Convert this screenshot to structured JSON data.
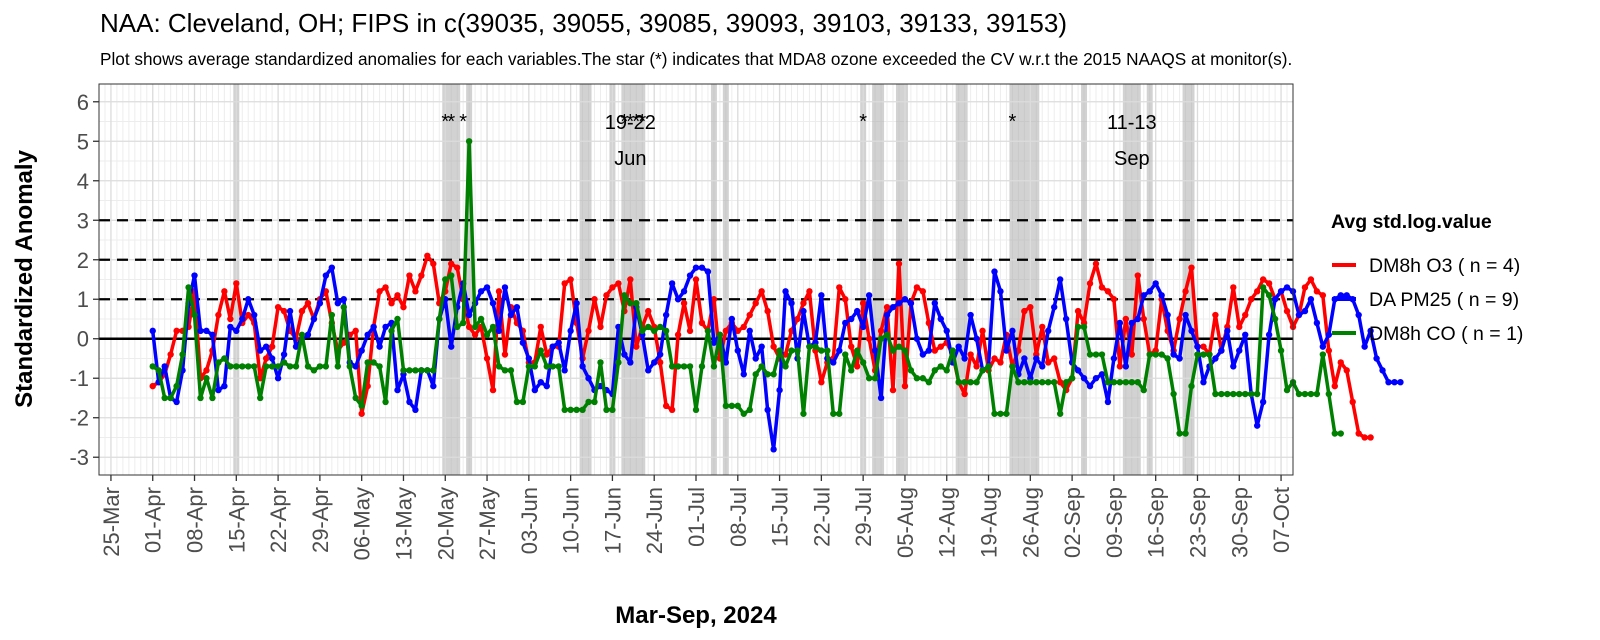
{
  "title": "NAA: Cleveland, OH; FIPS in c(39035, 39055, 39085, 39093, 39103, 39133, 39153)",
  "subtitle": "Plot shows average standardized anomalies for each variables.The star (*) indicates that MDA8 ozone exceeded the CV w.r.t the 2015 NAAQS at monitor(s).",
  "chart_data": {
    "type": "line",
    "title": "NAA: Cleveland, OH; FIPS in c(39035, 39055, 39085, 39093, 39103, 39133, 39153)",
    "xlabel": "Mar-Sep, 2024",
    "ylabel": "Standardized Anomaly",
    "xlim": [
      "2024-03-23",
      "2024-10-09"
    ],
    "ylim": [
      -3.45,
      6.45
    ],
    "y_ticks": [
      -3,
      -2,
      -1,
      0,
      1,
      2,
      3,
      4,
      5,
      6
    ],
    "x_ticks": [
      "25-Mar",
      "01-Apr",
      "08-Apr",
      "15-Apr",
      "22-Apr",
      "29-Apr",
      "06-May",
      "13-May",
      "20-May",
      "27-May",
      "03-Jun",
      "10-Jun",
      "17-Jun",
      "24-Jun",
      "01-Jul",
      "08-Jul",
      "15-Jul",
      "22-Jul",
      "29-Jul",
      "05-Aug",
      "12-Aug",
      "19-Aug",
      "26-Aug",
      "02-Sep",
      "09-Sep",
      "16-Sep",
      "23-Sep",
      "30-Sep",
      "07-Oct"
    ],
    "grid": true,
    "reference_lines": [
      {
        "y": 0,
        "style": "solid"
      },
      {
        "y": 1,
        "style": "dashed"
      },
      {
        "y": 2,
        "style": "dashed"
      },
      {
        "y": 3,
        "style": "dashed"
      }
    ],
    "legend": {
      "title": "Avg std.log.value",
      "position": "right"
    },
    "exceedance_star_dates": [
      "2024-05-20",
      "2024-05-21",
      "2024-05-23",
      "2024-06-19",
      "2024-06-20",
      "2024-06-21",
      "2024-06-22",
      "2024-07-29",
      "2024-08-23"
    ],
    "highlight_periods": [
      [
        "2024-04-15",
        "2024-04-15"
      ],
      [
        "2024-05-20",
        "2024-05-22"
      ],
      [
        "2024-05-24",
        "2024-05-24"
      ],
      [
        "2024-06-12",
        "2024-06-13"
      ],
      [
        "2024-06-17",
        "2024-06-17"
      ],
      [
        "2024-06-19",
        "2024-06-22"
      ],
      [
        "2024-07-04",
        "2024-07-04"
      ],
      [
        "2024-07-06",
        "2024-07-06"
      ],
      [
        "2024-07-29",
        "2024-07-29"
      ],
      [
        "2024-07-31",
        "2024-08-01"
      ],
      [
        "2024-08-04",
        "2024-08-05"
      ],
      [
        "2024-08-14",
        "2024-08-15"
      ],
      [
        "2024-08-23",
        "2024-08-27"
      ],
      [
        "2024-09-04",
        "2024-09-04"
      ],
      [
        "2024-09-11",
        "2024-09-13"
      ],
      [
        "2024-09-15",
        "2024-09-15"
      ],
      [
        "2024-09-21",
        "2024-09-22"
      ]
    ],
    "period_labels": [
      {
        "date": "2024-06-20",
        "lines": [
          "19-22",
          "Jun"
        ]
      },
      {
        "date": "2024-09-12",
        "lines": [
          "11-13",
          "Sep"
        ]
      }
    ],
    "series_start": "2024-04-01",
    "series": [
      {
        "name": "DM8h O3 ( n = 4)",
        "color": "#ff0000",
        "values": [
          -1.2,
          -1.1,
          -0.9,
          -0.4,
          0.2,
          0.2,
          0.3,
          1.2,
          -1.0,
          -0.8,
          -0.3,
          0.6,
          1.2,
          0.5,
          1.4,
          0.4,
          0.6,
          0.4,
          -1.0,
          -0.5,
          -0.2,
          0.8,
          0.7,
          0.2,
          0.0,
          0.7,
          0.9,
          0.5,
          1.0,
          1.2,
          0.4,
          -0.3,
          -0.1,
          0.1,
          0.2,
          -1.9,
          -1.2,
          0.3,
          1.2,
          1.3,
          0.9,
          1.1,
          0.8,
          1.6,
          1.2,
          1.6,
          2.1,
          1.9,
          0.9,
          1.2,
          1.9,
          1.8,
          1.0,
          0.3,
          0.1,
          0.3,
          -0.5,
          -1.3,
          1.2,
          -0.4,
          0.8,
          0.4,
          0.2,
          -0.6,
          -0.6,
          0.3,
          -0.4,
          -0.2,
          -0.2,
          1.4,
          1.5,
          0.4,
          -0.5,
          0.2,
          1.0,
          0.3,
          1.1,
          1.3,
          1.4,
          0.7,
          1.5,
          -0.2,
          0.3,
          0.7,
          0.3,
          -0.6,
          -1.7,
          -1.8,
          0.1,
          0.9,
          0.2,
          1.5,
          0.4,
          0.2,
          1.0,
          -0.5,
          0.2,
          0.4,
          0.2,
          0.3,
          0.6,
          0.9,
          1.2,
          0.7,
          -0.2,
          -0.5,
          -0.4,
          0.2,
          0.5,
          0.9,
          1.2,
          -0.3,
          -1.1,
          -0.6,
          -0.5,
          1.3,
          1.0,
          -0.2,
          -0.7,
          0.9,
          0.0,
          -0.8,
          0.2,
          0.8,
          -1.3,
          1.9,
          -1.2,
          0.9,
          1.3,
          1.2,
          0.4,
          -0.3,
          -0.2,
          -0.1,
          -0.4,
          -1.1,
          -1.4,
          -0.4,
          -0.7,
          0.2,
          -0.8,
          -0.5,
          -0.6,
          0.1,
          -0.7,
          -0.3,
          0.7,
          0.8,
          -0.4,
          0.3,
          -0.6,
          -0.5,
          -1.1,
          -1.3,
          -1.0,
          0.7,
          0.4,
          1.4,
          1.9,
          1.3,
          1.2,
          1.0,
          -0.7,
          0.5,
          -0.4,
          1.6,
          0.5,
          -0.4,
          -0.3,
          1.0,
          0.2,
          -0.3,
          0.5,
          1.2,
          1.8,
          -0.2,
          -0.2,
          -0.4,
          0.6,
          -0.3,
          0.3,
          1.3,
          0.3,
          0.6,
          1.0,
          1.2,
          1.5,
          1.4,
          1.0,
          1.2,
          0.7,
          0.3,
          0.6,
          1.3,
          1.5,
          1.2,
          1.1,
          -0.3,
          -1.2,
          -0.6,
          -0.8,
          -1.6,
          -2.4,
          -2.5,
          -2.5
        ]
      },
      {
        "name": "DA PM25 ( n = 9)",
        "color": "#0000ff",
        "values": [
          0.2,
          -1.1,
          -0.7,
          -1.5,
          -1.6,
          -0.8,
          0.9,
          1.6,
          0.2,
          0.2,
          0.1,
          -1.3,
          -1.2,
          0.3,
          0.2,
          0.5,
          1.0,
          0.6,
          -0.3,
          -0.2,
          -0.5,
          -1.0,
          -0.4,
          0.7,
          -0.2,
          0.0,
          0.1,
          0.5,
          0.9,
          1.6,
          1.8,
          0.9,
          1.0,
          -0.6,
          -0.7,
          -0.3,
          0.1,
          0.3,
          -0.2,
          0.3,
          0.4,
          -1.3,
          -0.9,
          -1.6,
          -1.8,
          -0.8,
          -0.8,
          -1.2,
          0.5,
          1.0,
          -0.2,
          0.8,
          1.4,
          0.6,
          0.9,
          1.2,
          1.3,
          0.9,
          0.2,
          1.3,
          0.6,
          0.8,
          -0.1,
          -0.5,
          -1.3,
          -1.1,
          -1.2,
          -0.2,
          -0.1,
          -0.8,
          0.2,
          0.9,
          -0.7,
          -1.0,
          -1.3,
          -1.2,
          -1.3,
          -1.4,
          0.3,
          -0.4,
          -0.6,
          0.8,
          0.1,
          -0.8,
          -0.6,
          -0.4,
          0.6,
          1.4,
          1.0,
          1.2,
          1.6,
          1.8,
          1.8,
          1.7,
          -0.1,
          0.1,
          -0.6,
          0.5,
          -0.3,
          -0.9,
          0.2,
          -0.5,
          -0.2,
          -1.8,
          -2.8,
          -1.3,
          1.2,
          0.9,
          -0.5,
          0.7,
          -0.2,
          -0.1,
          1.1,
          -0.5,
          -0.6,
          -0.3,
          0.4,
          0.5,
          0.7,
          0.3,
          1.1,
          -0.3,
          -1.5,
          0.6,
          0.8,
          0.9,
          1.0,
          0.9,
          0.0,
          -0.4,
          -0.3,
          0.9,
          0.5,
          0.2,
          -0.6,
          -0.2,
          -0.5,
          0.6,
          0.0,
          -0.8,
          -0.7,
          1.7,
          1.2,
          -0.3,
          0.2,
          -0.9,
          -0.5,
          -1.0,
          -0.5,
          -0.7,
          0.2,
          0.8,
          1.5,
          0.5,
          -0.6,
          -0.8,
          -1.0,
          -1.2,
          -1.0,
          -0.9,
          -1.6,
          -0.5,
          0.4,
          -0.7,
          0.4,
          0.5,
          1.1,
          1.2,
          1.4,
          1.1,
          0.6,
          -0.4,
          -0.5,
          0.6,
          0.2,
          -0.2,
          -1.1,
          -0.7,
          -0.5,
          -0.3,
          0.2,
          -0.7,
          -0.3,
          0.1,
          -1.4,
          -2.2,
          -1.6,
          0.1,
          1.0,
          1.2,
          1.3,
          1.2,
          0.6,
          0.7,
          1.0,
          0.4,
          -0.2,
          0.1,
          1.0,
          1.1,
          1.1,
          1.0,
          0.6,
          -0.2,
          0.2,
          -0.5,
          -0.8,
          -1.1,
          -1.1,
          -1.1
        ]
      },
      {
        "name": "DM8h CO ( n = 1)",
        "color": "#008000",
        "values": [
          -0.7,
          -0.8,
          -1.5,
          -1.5,
          -1.2,
          -0.4,
          1.3,
          0.6,
          -1.5,
          -1.0,
          -1.5,
          -0.6,
          -0.5,
          -0.7,
          -0.7,
          -0.7,
          -0.7,
          -0.7,
          -1.5,
          -0.7,
          -0.7,
          -0.7,
          -0.6,
          -0.7,
          -0.7,
          0.1,
          -0.7,
          -0.8,
          -0.7,
          -0.7,
          0.6,
          -0.7,
          0.8,
          -0.7,
          -1.5,
          -1.7,
          -0.6,
          -0.6,
          -0.7,
          -1.6,
          0.2,
          0.5,
          -0.8,
          -0.8,
          -0.8,
          -0.8,
          -0.8,
          -0.8,
          0.5,
          1.5,
          1.6,
          0.3,
          0.4,
          5.0,
          0.3,
          0.5,
          0.1,
          0.3,
          -0.7,
          -0.8,
          -0.8,
          -1.6,
          -1.6,
          -0.7,
          -0.7,
          -0.3,
          -0.7,
          -0.7,
          -0.7,
          -1.8,
          -1.8,
          -1.8,
          -1.8,
          -1.6,
          -1.6,
          -0.6,
          -1.8,
          -1.8,
          -0.6,
          1.1,
          0.9,
          0.9,
          0.2,
          0.3,
          0.2,
          0.3,
          0.2,
          -0.7,
          -0.7,
          -0.7,
          -0.7,
          -1.8,
          -0.7,
          0.2,
          -0.7,
          0.1,
          -1.7,
          -1.7,
          -1.7,
          -1.9,
          -1.8,
          -0.9,
          -0.7,
          -0.9,
          -0.9,
          -0.3,
          -0.7,
          -0.3,
          -0.3,
          -1.9,
          -0.2,
          -0.2,
          -0.3,
          -0.3,
          -1.9,
          -1.9,
          -0.4,
          -0.8,
          -0.3,
          -0.6,
          -1.0,
          -1.0,
          0.0,
          0.1,
          -0.3,
          -0.2,
          -0.3,
          -0.8,
          -1.0,
          -1.0,
          -1.1,
          -0.8,
          -0.7,
          -0.8,
          -0.3,
          -1.1,
          -1.1,
          -1.1,
          -1.1,
          -0.8,
          -0.7,
          -1.9,
          -1.9,
          -1.9,
          -0.7,
          -1.1,
          -1.1,
          -1.1,
          -1.1,
          -1.1,
          -1.1,
          -1.1,
          -1.9,
          -1.1,
          -1.0,
          0.3,
          0.3,
          -0.4,
          -0.4,
          -0.4,
          -1.1,
          -1.1,
          -1.1,
          -1.1,
          -1.1,
          -1.1,
          -1.3,
          -0.4,
          -0.4,
          -0.4,
          -0.5,
          -1.4,
          -2.4,
          -2.4,
          -1.2,
          -0.4,
          -0.4,
          -0.4,
          -1.4,
          -1.4,
          -1.4,
          -1.4,
          -1.4,
          -1.4,
          -1.4,
          -1.4,
          1.3,
          1.1,
          0.5,
          -0.3,
          -1.3,
          -1.1,
          -1.4,
          -1.4,
          -1.4,
          -1.4,
          -0.4,
          -1.4,
          -2.4,
          -2.4
        ]
      }
    ]
  }
}
